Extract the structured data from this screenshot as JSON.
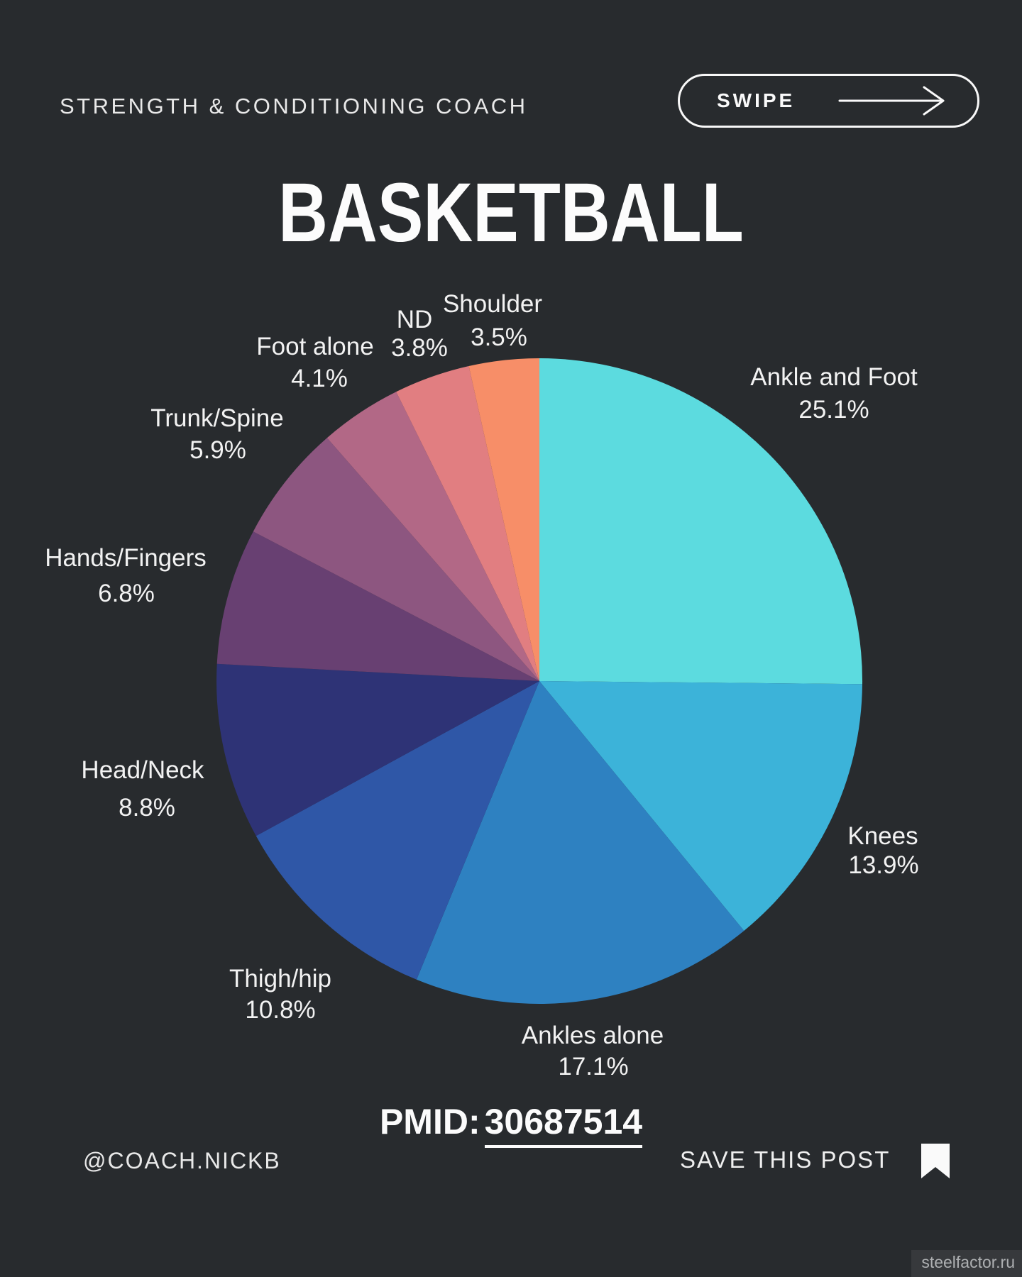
{
  "page": {
    "background": "#282B2E"
  },
  "header": {
    "brand": "STRENGTH & CONDITIONING COACH"
  },
  "swipe_button": {
    "label": "SWIPE",
    "arrow_icon": "long-right-arrow"
  },
  "title": "BASKETBALL",
  "chart_data": {
    "type": "pie",
    "title": "BASKETBALL",
    "unit": "%",
    "start_angle_deg": 0,
    "direction": "clockwise",
    "legend_position": "around-slices",
    "slices": [
      {
        "label": "Ankle and Foot",
        "value": 25.1,
        "value_label": "25.1%",
        "color": "#5CDBDF"
      },
      {
        "label": "Knees",
        "value": 13.9,
        "value_label": "13.9%",
        "color": "#3CB3D9"
      },
      {
        "label": "Ankles alone",
        "value": 17.1,
        "value_label": "17.1%",
        "color": "#2E81C1"
      },
      {
        "label": "Thigh/hip",
        "value": 10.8,
        "value_label": "10.8%",
        "color": "#2F57A7"
      },
      {
        "label": "Head/Neck",
        "value": 8.8,
        "value_label": "8.8%",
        "color": "#2E3376"
      },
      {
        "label": "Hands/Fingers",
        "value": 6.8,
        "value_label": "6.8%",
        "color": "#684072"
      },
      {
        "label": "Trunk/Spine",
        "value": 5.9,
        "value_label": "5.9%",
        "color": "#8D5680"
      },
      {
        "label": "Foot alone",
        "value": 4.1,
        "value_label": "4.1%",
        "color": "#B26886"
      },
      {
        "label": "ND",
        "value": 3.8,
        "value_label": "3.8%",
        "color": "#E17E81"
      },
      {
        "label": "Shoulder",
        "value": 3.5,
        "value_label": "3.5%",
        "color": "#F78E68"
      }
    ]
  },
  "source": {
    "pmid_label": "PMID:",
    "pmid_value": "30687514"
  },
  "footer": {
    "handle": "@COACH.NICKB",
    "save_label": "SAVE THIS POST",
    "bookmark_icon": "bookmark"
  },
  "watermark": "steelfactor.ru"
}
